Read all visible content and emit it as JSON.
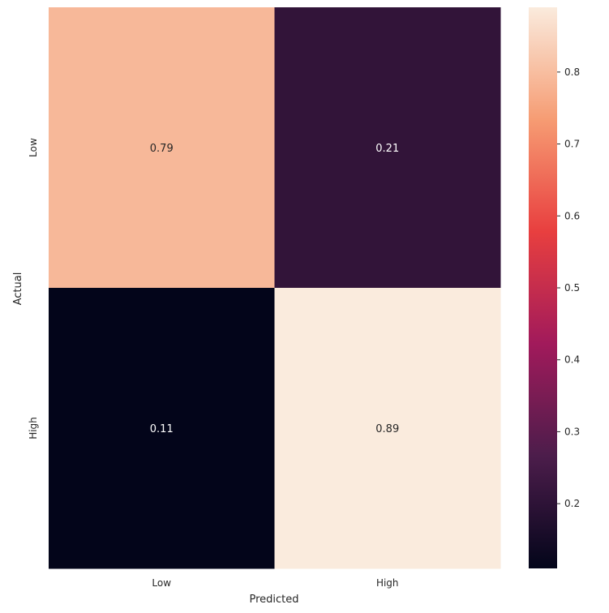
{
  "chart_data": {
    "type": "heatmap",
    "title": "",
    "xlabel": "Predicted",
    "ylabel": "Actual",
    "x_categories": [
      "Low",
      "High"
    ],
    "y_categories": [
      "Low",
      "High"
    ],
    "values": [
      [
        0.79,
        0.21
      ],
      [
        0.11,
        0.89
      ]
    ],
    "cell_labels": [
      [
        "0.79",
        "0.21"
      ],
      [
        "0.11",
        "0.89"
      ]
    ],
    "colorbar": {
      "range": [
        0.11,
        0.89
      ],
      "ticks": [
        0.2,
        0.3,
        0.4,
        0.5,
        0.6,
        0.7,
        0.8
      ],
      "tick_labels": [
        "0.2",
        "0.3",
        "0.4",
        "0.5",
        "0.6",
        "0.7",
        "0.8"
      ],
      "colormap": "rocket",
      "colormap_stops": [
        "#03051a",
        "#4c1d4b",
        "#a11a5b",
        "#e83f3f",
        "#f69c73",
        "#faebdd"
      ]
    },
    "grid": false,
    "legend": "colorbar-right"
  }
}
